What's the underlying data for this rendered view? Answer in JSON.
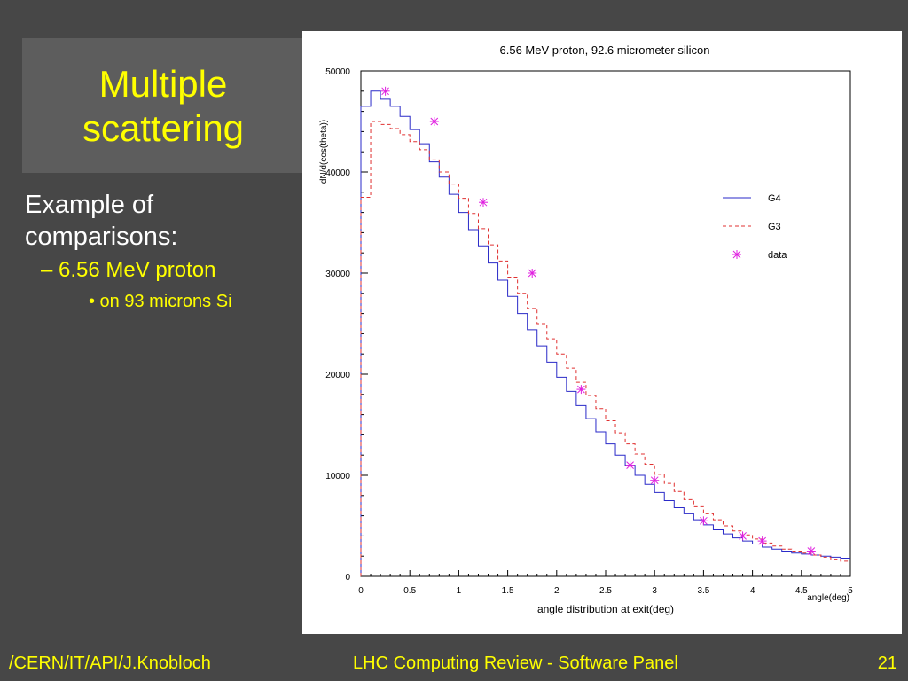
{
  "slide": {
    "title_line1": "Multiple",
    "title_line2": "scattering",
    "bullets": {
      "level1": "Example of comparisons:",
      "level2": "–  6.56 MeV proton",
      "level3": "• on 93 microns Si"
    },
    "footer": {
      "left": "/CERN/IT/API/J.Knobloch",
      "center": "LHC Computing Review - Software Panel",
      "page": "21"
    },
    "colors": {
      "background": "#474747",
      "title_box": "#5d5d5d",
      "accent": "#ffff00"
    }
  },
  "chart_data": {
    "type": "line",
    "title": "6.56 MeV proton, 92.6 micrometer silicon",
    "xlabel": "angle distribution at exit(deg)",
    "x_axis_end_label": "angle(deg)",
    "ylabel": "dN/d(cos(theta))",
    "xlim": [
      0,
      5
    ],
    "ylim": [
      0,
      50000
    ],
    "x_ticks": [
      "0",
      "0.5",
      "1",
      "1.5",
      "2",
      "2.5",
      "3",
      "3.5",
      "4",
      "4.5",
      "5"
    ],
    "y_ticks": [
      "0",
      "10000",
      "20000",
      "30000",
      "40000",
      "50000"
    ],
    "bin_edges": [
      0,
      0.1,
      0.2,
      0.3,
      0.4,
      0.5,
      0.6,
      0.7,
      0.8,
      0.9,
      1.0,
      1.1,
      1.2,
      1.3,
      1.4,
      1.5,
      1.6,
      1.7,
      1.8,
      1.9,
      2.0,
      2.1,
      2.2,
      2.3,
      2.4,
      2.5,
      2.6,
      2.7,
      2.8,
      2.9,
      3.0,
      3.1,
      3.2,
      3.3,
      3.4,
      3.5,
      3.6,
      3.7,
      3.8,
      3.9,
      4.0,
      4.1,
      4.2,
      4.3,
      4.4,
      4.5,
      4.6,
      4.7,
      4.8,
      4.9,
      5.0
    ],
    "series": [
      {
        "name": "G4",
        "style": "histogram-solid",
        "color": "#2a2ac8",
        "values": [
          46500,
          48000,
          47200,
          46500,
          45500,
          44200,
          42800,
          41000,
          39500,
          37800,
          36000,
          34300,
          32700,
          31000,
          29300,
          27700,
          26000,
          24400,
          22800,
          21200,
          19700,
          18300,
          16900,
          15600,
          14300,
          13100,
          12000,
          11000,
          10000,
          9100,
          8300,
          7500,
          6800,
          6200,
          5600,
          5100,
          4600,
          4200,
          3800,
          3500,
          3200,
          2900,
          2700,
          2500,
          2300,
          2200,
          2100,
          2000,
          1900,
          1800
        ]
      },
      {
        "name": "G3",
        "style": "histogram-dashed",
        "color": "#e03030",
        "values": [
          37500,
          45000,
          44700,
          44300,
          43700,
          43000,
          42200,
          41200,
          40000,
          38800,
          37400,
          35900,
          34400,
          32800,
          31200,
          29600,
          28000,
          26500,
          25000,
          23500,
          22000,
          20600,
          19200,
          17900,
          16600,
          15400,
          14200,
          13100,
          12100,
          11100,
          10100,
          9200,
          8400,
          7600,
          6900,
          6200,
          5600,
          5000,
          4500,
          4100,
          3700,
          3300,
          3000,
          2700,
          2500,
          2300,
          2100,
          1900,
          1700,
          1500
        ]
      },
      {
        "name": "data",
        "style": "markers",
        "color": "#e020e0",
        "x": [
          0.25,
          0.75,
          1.25,
          1.75,
          2.25,
          2.75,
          3.0,
          3.5,
          3.9,
          4.1,
          4.6
        ],
        "values": [
          48000,
          45000,
          37000,
          30000,
          18500,
          11000,
          9500,
          5500,
          4000,
          3500,
          2500
        ]
      }
    ],
    "legend": "right",
    "grid": false
  }
}
